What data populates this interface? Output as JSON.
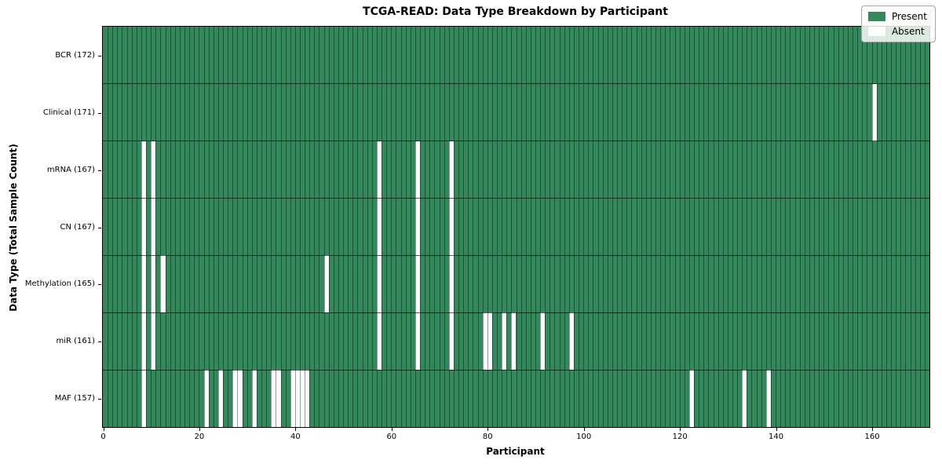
{
  "title": "TCGA-READ: Data Type Breakdown by Participant",
  "axes": {
    "xlabel": "Participant",
    "ylabel": "Data Type (Total Sample Count)",
    "x_ticks": [
      0,
      20,
      40,
      60,
      80,
      100,
      120,
      140,
      160
    ]
  },
  "legend": {
    "present_label": "Present",
    "absent_label": "Absent"
  },
  "colors": {
    "present": "#34895c",
    "absent": "#ffffff",
    "gridline": "rgba(0,0,0,0.40)",
    "row_separator": "rgba(0,0,0,0.65)"
  },
  "chart_data": {
    "type": "heatmap",
    "title": "TCGA-READ: Data Type Breakdown by Participant",
    "xlabel": "Participant",
    "ylabel": "Data Type (Total Sample Count)",
    "xlim": [
      0,
      172
    ],
    "n_participants": 172,
    "legend": [
      "Present",
      "Absent"
    ],
    "legend_position": "upper right",
    "grid": true,
    "rows": [
      {
        "label": "BCR (172)",
        "data_type": "BCR",
        "total_sample_count": 172,
        "absent_participants": []
      },
      {
        "label": "Clinical (171)",
        "data_type": "Clinical",
        "total_sample_count": 171,
        "absent_participants": [
          160
        ]
      },
      {
        "label": "mRNA (167)",
        "data_type": "mRNA",
        "total_sample_count": 167,
        "absent_participants": [
          8,
          10,
          57,
          65,
          72
        ]
      },
      {
        "label": "CN (167)",
        "data_type": "CN",
        "total_sample_count": 167,
        "absent_participants": [
          8,
          10,
          57,
          65,
          72
        ]
      },
      {
        "label": "Methylation (165)",
        "data_type": "Methylation",
        "total_sample_count": 165,
        "absent_participants": [
          8,
          10,
          12,
          46,
          57,
          65,
          72
        ]
      },
      {
        "label": "miR (161)",
        "data_type": "miR",
        "total_sample_count": 161,
        "absent_participants": [
          8,
          10,
          57,
          65,
          72,
          79,
          80,
          83,
          85,
          91,
          97
        ]
      },
      {
        "label": "MAF (157)",
        "data_type": "MAF",
        "total_sample_count": 157,
        "absent_participants": [
          8,
          21,
          24,
          27,
          28,
          31,
          35,
          36,
          39,
          40,
          41,
          42,
          122,
          133,
          138
        ]
      }
    ]
  }
}
